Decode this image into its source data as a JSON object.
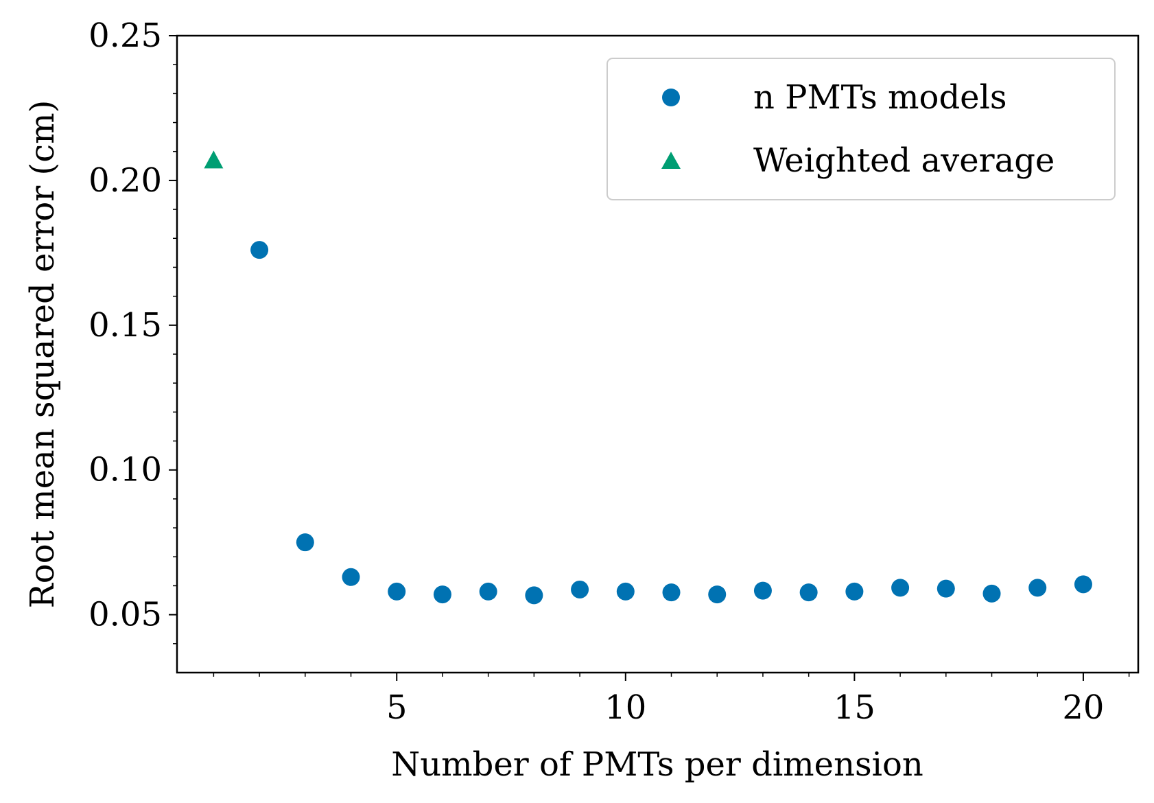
{
  "chart_data": {
    "type": "scatter",
    "title": "",
    "xlabel": "Number of PMTs per dimension",
    "ylabel": "Root mean squared error (cm)",
    "xlim": [
      0.2,
      21.2
    ],
    "ylim": [
      0.03,
      0.25
    ],
    "x_ticks": [
      5,
      10,
      15,
      20
    ],
    "x_tick_labels": [
      "5",
      "10",
      "15",
      "20"
    ],
    "y_ticks": [
      0.05,
      0.1,
      0.15,
      0.2,
      0.25
    ],
    "y_tick_labels": [
      "0.05",
      "0.10",
      "0.15",
      "0.20",
      "0.25"
    ],
    "x_minor_ticks": [
      1,
      2,
      3,
      4,
      6,
      7,
      8,
      9,
      11,
      12,
      13,
      14,
      16,
      17,
      18,
      19,
      21
    ],
    "y_minor_ticks": [
      0.04,
      0.06,
      0.07,
      0.08,
      0.09,
      0.11,
      0.12,
      0.13,
      0.14,
      0.16,
      0.17,
      0.18,
      0.19,
      0.21,
      0.22,
      0.23,
      0.24
    ],
    "grid": false,
    "legend_position": "top-right",
    "series": [
      {
        "name": "n PMTs models",
        "marker": "circle",
        "color": "#0072b2",
        "x": [
          2,
          3,
          4,
          5,
          6,
          7,
          8,
          9,
          10,
          11,
          12,
          13,
          14,
          15,
          16,
          17,
          18,
          19,
          20
        ],
        "y": [
          0.176,
          0.075,
          0.063,
          0.058,
          0.057,
          0.058,
          0.0567,
          0.0587,
          0.058,
          0.0577,
          0.057,
          0.0583,
          0.0577,
          0.058,
          0.0593,
          0.059,
          0.0573,
          0.0593,
          0.0605
        ]
      },
      {
        "name": "Weighted average",
        "marker": "triangle",
        "color": "#009e73",
        "x": [
          1
        ],
        "y": [
          0.207
        ]
      }
    ]
  }
}
